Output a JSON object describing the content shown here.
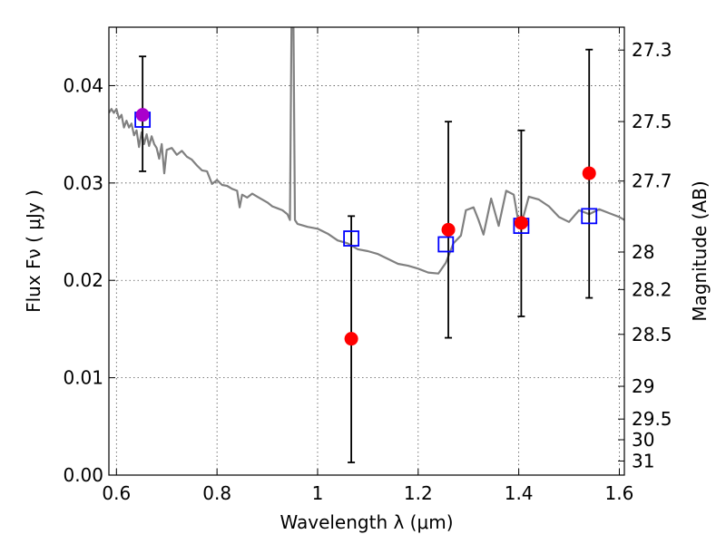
{
  "chart_data": {
    "type": "scatter",
    "title": "",
    "xlabel": "Wavelength  λ (μm)",
    "ylabel": "Flux  Fν  ( μJy )",
    "ylabel_right": "Magnitude (AB)",
    "xlim": [
      0.585,
      1.61
    ],
    "ylim": [
      0.0,
      0.046
    ],
    "grid": true,
    "x_ticks": [
      {
        "value": 0.6,
        "label": "0.6"
      },
      {
        "value": 0.8,
        "label": "0.8"
      },
      {
        "value": 1.0,
        "label": "1"
      },
      {
        "value": 1.2,
        "label": "1.2"
      },
      {
        "value": 1.4,
        "label": "1.4"
      },
      {
        "value": 1.6,
        "label": "1.6"
      }
    ],
    "y_ticks": [
      {
        "value": 0.0,
        "label": "0.00"
      },
      {
        "value": 0.01,
        "label": "0.01"
      },
      {
        "value": 0.02,
        "label": "0.02"
      },
      {
        "value": 0.03,
        "label": "0.03"
      },
      {
        "value": 0.04,
        "label": "0.04"
      }
    ],
    "right_ticks": [
      {
        "value": 27.3,
        "label": "27.3"
      },
      {
        "value": 27.5,
        "label": "27.5"
      },
      {
        "value": 27.7,
        "label": "27.7"
      },
      {
        "value": 28.0,
        "label": "28"
      },
      {
        "value": 28.2,
        "label": "28.2"
      },
      {
        "value": 28.5,
        "label": "28.5"
      },
      {
        "value": 29.0,
        "label": "29"
      },
      {
        "value": 29.5,
        "label": "29.5"
      },
      {
        "value": 30.0,
        "label": "30"
      },
      {
        "value": 31.0,
        "label": "31"
      }
    ],
    "colors": {
      "model": "#808080",
      "observed": "#ff0000",
      "model_band": "#0000ff",
      "errorbar": "#000000",
      "first_point": "#aa00cc"
    },
    "series": [
      {
        "kind": "line",
        "points": [
          [
            0.585,
            0.0372
          ],
          [
            0.59,
            0.0376
          ],
          [
            0.595,
            0.0372
          ],
          [
            0.6,
            0.0376
          ],
          [
            0.605,
            0.0366
          ],
          [
            0.61,
            0.037
          ],
          [
            0.615,
            0.0357
          ],
          [
            0.62,
            0.0364
          ],
          [
            0.625,
            0.0357
          ],
          [
            0.63,
            0.0361
          ],
          [
            0.635,
            0.0349
          ],
          [
            0.64,
            0.0354
          ],
          [
            0.645,
            0.0337
          ],
          [
            0.65,
            0.0352
          ],
          [
            0.655,
            0.034
          ],
          [
            0.66,
            0.035
          ],
          [
            0.665,
            0.0338
          ],
          [
            0.67,
            0.0348
          ],
          [
            0.675,
            0.034
          ],
          [
            0.68,
            0.0336
          ],
          [
            0.685,
            0.0325
          ],
          [
            0.69,
            0.034
          ],
          [
            0.695,
            0.031
          ],
          [
            0.7,
            0.0334
          ],
          [
            0.71,
            0.0336
          ],
          [
            0.72,
            0.0329
          ],
          [
            0.73,
            0.0333
          ],
          [
            0.74,
            0.0327
          ],
          [
            0.75,
            0.0324
          ],
          [
            0.76,
            0.0318
          ],
          [
            0.77,
            0.0313
          ],
          [
            0.78,
            0.0312
          ],
          [
            0.79,
            0.0299
          ],
          [
            0.8,
            0.0303
          ],
          [
            0.81,
            0.0298
          ],
          [
            0.82,
            0.0297
          ],
          [
            0.83,
            0.0294
          ],
          [
            0.84,
            0.0292
          ],
          [
            0.845,
            0.0275
          ],
          [
            0.85,
            0.0288
          ],
          [
            0.86,
            0.0285
          ],
          [
            0.87,
            0.0289
          ],
          [
            0.88,
            0.0286
          ],
          [
            0.9,
            0.028
          ],
          [
            0.91,
            0.0276
          ],
          [
            0.92,
            0.0274
          ],
          [
            0.93,
            0.0272
          ],
          [
            0.94,
            0.0268
          ],
          [
            0.945,
            0.0262
          ],
          [
            0.948,
            0.046
          ],
          [
            0.952,
            0.046
          ],
          [
            0.955,
            0.0262
          ],
          [
            0.96,
            0.0258
          ],
          [
            0.98,
            0.0255
          ],
          [
            1.0,
            0.0253
          ],
          [
            1.02,
            0.0248
          ],
          [
            1.04,
            0.0241
          ],
          [
            1.06,
            0.0238
          ],
          [
            1.08,
            0.0232
          ],
          [
            1.1,
            0.023
          ],
          [
            1.12,
            0.0227
          ],
          [
            1.14,
            0.0222
          ],
          [
            1.16,
            0.0217
          ],
          [
            1.18,
            0.0215
          ],
          [
            1.2,
            0.0212
          ],
          [
            1.22,
            0.0208
          ],
          [
            1.24,
            0.0207
          ],
          [
            1.255,
            0.0218
          ],
          [
            1.27,
            0.0238
          ],
          [
            1.285,
            0.0246
          ],
          [
            1.295,
            0.0272
          ],
          [
            1.31,
            0.0275
          ],
          [
            1.32,
            0.0262
          ],
          [
            1.33,
            0.0247
          ],
          [
            1.345,
            0.0284
          ],
          [
            1.36,
            0.0256
          ],
          [
            1.375,
            0.0292
          ],
          [
            1.39,
            0.0288
          ],
          [
            1.4,
            0.0258
          ],
          [
            1.41,
            0.0267
          ],
          [
            1.42,
            0.0286
          ],
          [
            1.44,
            0.0283
          ],
          [
            1.46,
            0.0276
          ],
          [
            1.48,
            0.0265
          ],
          [
            1.5,
            0.026
          ],
          [
            1.52,
            0.0272
          ],
          [
            1.54,
            0.0268
          ],
          [
            1.56,
            0.0273
          ],
          [
            1.58,
            0.0269
          ],
          [
            1.6,
            0.0265
          ],
          [
            1.61,
            0.0262
          ]
        ]
      },
      {
        "kind": "model_band",
        "points": [
          {
            "x": 0.652,
            "y": 0.0365
          },
          {
            "x": 1.067,
            "y": 0.0243
          },
          {
            "x": 1.255,
            "y": 0.0237
          },
          {
            "x": 1.405,
            "y": 0.0256
          },
          {
            "x": 1.54,
            "y": 0.0266
          }
        ]
      },
      {
        "kind": "observed",
        "points": [
          {
            "x": 0.652,
            "y": 0.037,
            "low": 0.0312,
            "high": 0.043
          },
          {
            "x": 1.067,
            "y": 0.014,
            "low": 0.0013,
            "high": 0.0266
          },
          {
            "x": 1.26,
            "y": 0.0252,
            "low": 0.0141,
            "high": 0.0363
          },
          {
            "x": 1.405,
            "y": 0.0259,
            "low": 0.0163,
            "high": 0.0354
          },
          {
            "x": 1.54,
            "y": 0.031,
            "low": 0.0182,
            "high": 0.0437
          }
        ]
      }
    ]
  }
}
